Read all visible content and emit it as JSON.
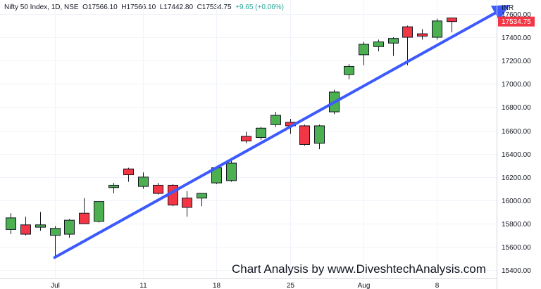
{
  "header": {
    "symbol": "Nifty 50 Index, 1D, NSE",
    "open": "O17566.10",
    "high": "H17566.10",
    "low": "L17442.80",
    "close": "C17534.75",
    "change": "+9.65 (+0.06%)"
  },
  "currency_label": "INR",
  "current_price_label": "17534.75",
  "watermark": "Chart Analysis by www.DiveshtechAnalysis.com",
  "colors": {
    "up": "#4caf50",
    "down": "#f23645",
    "trend_arrow": "#3d5afe",
    "tag": "#f23645"
  },
  "chart_data": {
    "type": "candlestick",
    "y_ticks": [
      "15400.00",
      "15600.00",
      "15800.00",
      "16000.00",
      "16200.00",
      "16400.00",
      "16600.00",
      "16800.00",
      "17000.00",
      "17200.00",
      "17400.00",
      "17600.00"
    ],
    "ylim": [
      15330,
      17720
    ],
    "x_tick_labels": [
      {
        "label": "Jul",
        "index": 3
      },
      {
        "label": "11",
        "index": 9
      },
      {
        "label": "18",
        "index": 14
      },
      {
        "label": "25",
        "index": 19
      },
      {
        "label": "Aug",
        "index": 24
      },
      {
        "label": "8",
        "index": 29
      }
    ],
    "candles": [
      {
        "o": 15750,
        "h": 15890,
        "l": 15710,
        "c": 15850
      },
      {
        "o": 15790,
        "h": 15860,
        "l": 15700,
        "c": 15710
      },
      {
        "o": 15770,
        "h": 15900,
        "l": 15740,
        "c": 15790
      },
      {
        "o": 15700,
        "h": 15780,
        "l": 15520,
        "c": 15760
      },
      {
        "o": 15710,
        "h": 15840,
        "l": 15680,
        "c": 15830
      },
      {
        "o": 15890,
        "h": 16020,
        "l": 15800,
        "c": 15800
      },
      {
        "o": 15820,
        "h": 15990,
        "l": 15810,
        "c": 15990
      },
      {
        "o": 16110,
        "h": 16150,
        "l": 16060,
        "c": 16130
      },
      {
        "o": 16270,
        "h": 16280,
        "l": 16160,
        "c": 16220
      },
      {
        "o": 16120,
        "h": 16240,
        "l": 16100,
        "c": 16200
      },
      {
        "o": 16130,
        "h": 16150,
        "l": 16050,
        "c": 16060
      },
      {
        "o": 16130,
        "h": 16140,
        "l": 15950,
        "c": 15960
      },
      {
        "o": 16020,
        "h": 16080,
        "l": 15860,
        "c": 15940
      },
      {
        "o": 16020,
        "h": 16060,
        "l": 15950,
        "c": 16060
      },
      {
        "o": 16150,
        "h": 16290,
        "l": 16140,
        "c": 16280
      },
      {
        "o": 16170,
        "h": 16340,
        "l": 16160,
        "c": 16320
      },
      {
        "o": 16550,
        "h": 16590,
        "l": 16490,
        "c": 16510
      },
      {
        "o": 16540,
        "h": 16630,
        "l": 16520,
        "c": 16620
      },
      {
        "o": 16650,
        "h": 16760,
        "l": 16630,
        "c": 16730
      },
      {
        "o": 16670,
        "h": 16700,
        "l": 16570,
        "c": 16640
      },
      {
        "o": 16640,
        "h": 16650,
        "l": 16470,
        "c": 16480
      },
      {
        "o": 16490,
        "h": 16650,
        "l": 16440,
        "c": 16640
      },
      {
        "o": 16760,
        "h": 16950,
        "l": 16740,
        "c": 16930
      },
      {
        "o": 17080,
        "h": 17170,
        "l": 17040,
        "c": 17150
      },
      {
        "o": 17250,
        "h": 17360,
        "l": 17160,
        "c": 17340
      },
      {
        "o": 17320,
        "h": 17380,
        "l": 17280,
        "c": 17360
      },
      {
        "o": 17350,
        "h": 17400,
        "l": 17240,
        "c": 17390
      },
      {
        "o": 17490,
        "h": 17500,
        "l": 17160,
        "c": 17400
      },
      {
        "o": 17430,
        "h": 17470,
        "l": 17380,
        "c": 17410
      },
      {
        "o": 17400,
        "h": 17560,
        "l": 17380,
        "c": 17540
      },
      {
        "o": 17566,
        "h": 17566,
        "l": 17443,
        "c": 17535
      }
    ],
    "trend_line": {
      "from": {
        "index": 3,
        "value": 15510
      },
      "to": {
        "index": 33.7,
        "value": 17660
      }
    }
  }
}
